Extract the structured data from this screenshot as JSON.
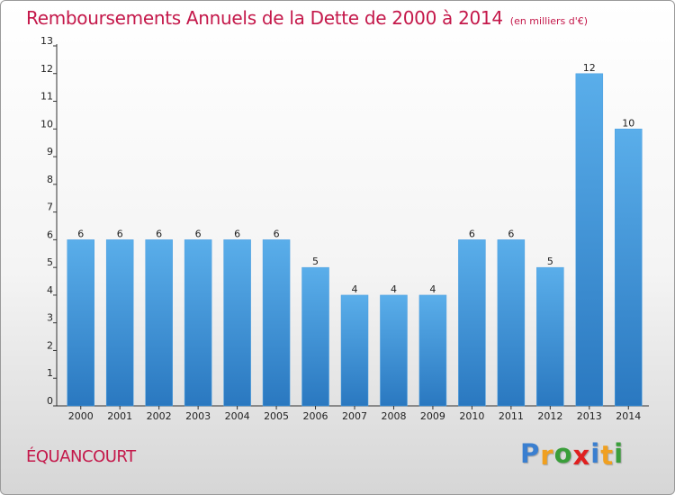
{
  "chart_data": {
    "type": "bar",
    "title": "Remboursements Annuels de la Dette de 2000 à 2014",
    "subtitle": "(en milliers d'€)",
    "categories": [
      "2000",
      "2001",
      "2002",
      "2003",
      "2004",
      "2005",
      "2006",
      "2007",
      "2008",
      "2009",
      "2010",
      "2011",
      "2012",
      "2013",
      "2014"
    ],
    "values": [
      6,
      6,
      6,
      6,
      6,
      6,
      5,
      4,
      4,
      4,
      6,
      6,
      5,
      12,
      10
    ],
    "ylim": [
      0,
      13
    ],
    "yticks": [
      0,
      1,
      2,
      3,
      4,
      5,
      6,
      7,
      8,
      9,
      10,
      11,
      12,
      13
    ],
    "grid": false,
    "data_labels": true,
    "bar_color": "#4a9ee0"
  },
  "place_name": "ÉQUANCOURT",
  "logo": {
    "letters": [
      "P",
      "r",
      "o",
      "x",
      "i",
      "t",
      "i"
    ],
    "colors": [
      "#3a7fd0",
      "#f0a020",
      "#3a9e3a",
      "#e02020",
      "#3a7fd0",
      "#f0a020",
      "#3a9e3a"
    ]
  },
  "colors": {
    "title": "#c4184a",
    "axis": "#222222"
  }
}
